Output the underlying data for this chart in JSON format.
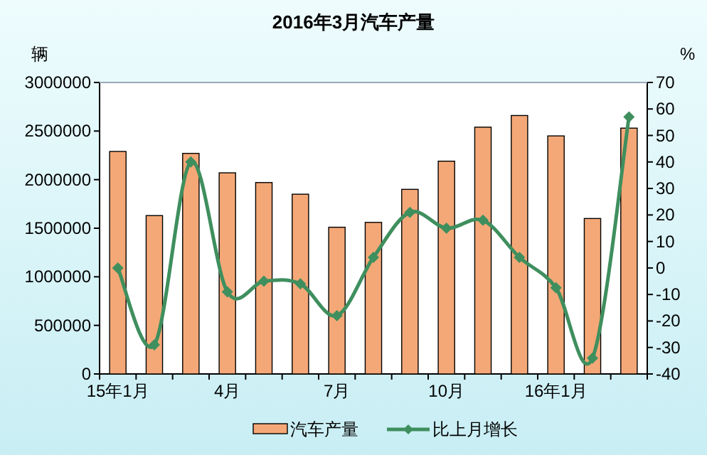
{
  "chart_data": {
    "type": "bar",
    "title": "2016年3月汽车产量",
    "ylabel": "辆",
    "y2label": "%",
    "categories": [
      "15年1月",
      null,
      null,
      "4月",
      null,
      null,
      "7月",
      null,
      null,
      "10月",
      null,
      null,
      "16年1月",
      null,
      null
    ],
    "series": [
      {
        "name": "汽车产量",
        "color": "#f5a877",
        "values": [
          2290000,
          1630000,
          2270000,
          2070000,
          1970000,
          1850000,
          1510000,
          1560000,
          1900000,
          2190000,
          2540000,
          2660000,
          2450000,
          1600000,
          2530000
        ]
      },
      {
        "name": "比上月增长",
        "type": "line",
        "axis": "y2",
        "color": "#3f8f5e",
        "marker": "diamond",
        "values": [
          0,
          -29,
          40,
          -9,
          -5,
          -6,
          -18,
          4,
          21,
          15,
          18,
          4,
          -7.5,
          -34,
          57
        ]
      }
    ],
    "ylim": [
      0,
      3000000
    ],
    "yticks": [
      0,
      500000,
      1000000,
      1500000,
      2000000,
      2500000,
      3000000
    ],
    "y2lim": [
      -40,
      70
    ],
    "y2ticks": [
      -40,
      -30,
      -20,
      -10,
      0,
      10,
      20,
      30,
      40,
      50,
      60,
      70
    ],
    "legend": "bottom"
  }
}
